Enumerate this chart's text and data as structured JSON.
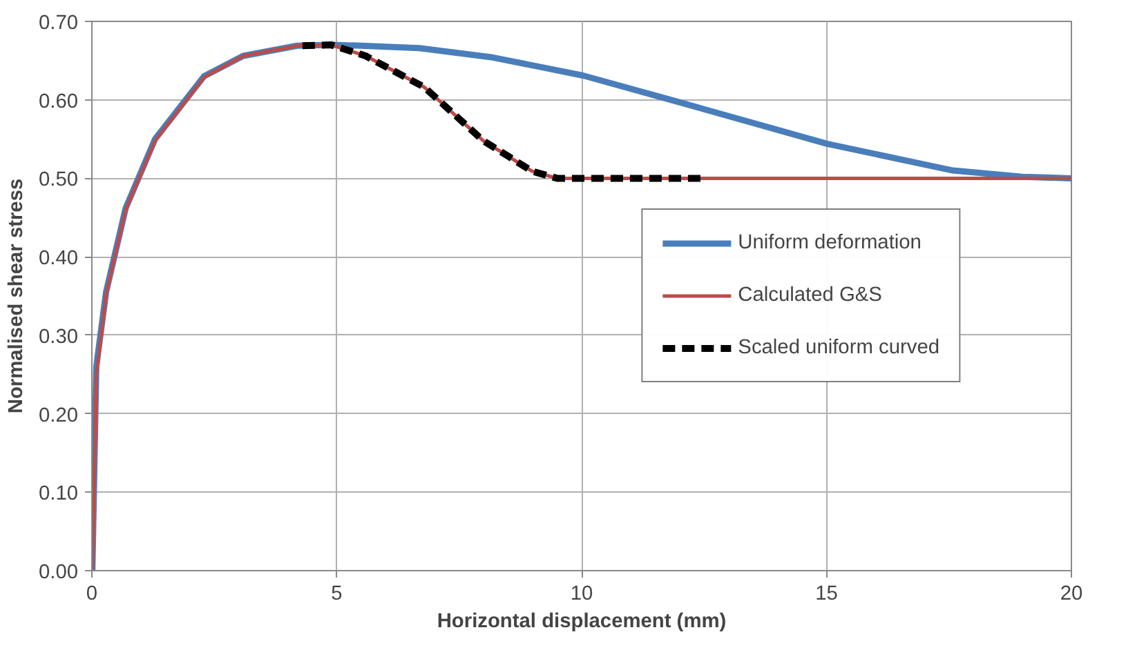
{
  "chart_data": {
    "type": "line",
    "xlabel": "Horizontal displacement (mm)",
    "ylabel": "Normalised shear stress",
    "xlim": [
      0,
      20
    ],
    "ylim": [
      0,
      0.7
    ],
    "xticks": [
      0,
      5,
      10,
      15,
      20
    ],
    "yticks": [
      {
        "value": 0,
        "label": "0.00"
      },
      {
        "value": 0.1,
        "label": "0.10"
      },
      {
        "value": 0.2,
        "label": "0.20"
      },
      {
        "value": 0.3,
        "label": "0.30"
      },
      {
        "value": 0.4,
        "label": "0.40"
      },
      {
        "value": 0.5,
        "label": "0.50"
      },
      {
        "value": 0.6,
        "label": "0.60"
      },
      {
        "value": 0.7,
        "label": "0.70"
      }
    ],
    "grid": true,
    "legend": "center right",
    "marker": "none",
    "series": [
      {
        "name": "Uniform deformation",
        "color": "#4a7ebb",
        "line_style": "solid",
        "x": [
          0.01,
          0.09,
          0.29,
          0.69,
          1.29,
          2.29,
          3.09,
          4.19,
          4.89,
          5.5,
          6.69,
          8.19,
          10.03,
          11.88,
          15.01,
          17.58,
          19.0,
          20.0
        ],
        "values": [
          0.0,
          0.26,
          0.355,
          0.462,
          0.55,
          0.63,
          0.656,
          0.669,
          0.67,
          0.669,
          0.666,
          0.654,
          0.631,
          0.599,
          0.544,
          0.51,
          0.502,
          0.5
        ]
      },
      {
        "name": "Calculated G&S",
        "color": "#be4b48",
        "line_style": "solid",
        "x": [
          0.01,
          0.09,
          0.29,
          0.69,
          1.29,
          2.29,
          3.09,
          4.19,
          4.89,
          5.59,
          6.79,
          7.99,
          8.99,
          9.5,
          20.0
        ],
        "values": [
          0.0,
          0.25,
          0.353,
          0.461,
          0.548,
          0.629,
          0.656,
          0.669,
          0.67,
          0.656,
          0.616,
          0.548,
          0.509,
          0.5,
          0.5
        ]
      },
      {
        "name": "Scaled uniform curved",
        "color": "#000000",
        "line_style": "dashed",
        "x": [
          4.3,
          4.89,
          5.59,
          6.79,
          7.99,
          8.99,
          9.5,
          12.5
        ],
        "values": [
          0.669,
          0.67,
          0.656,
          0.616,
          0.548,
          0.509,
          0.5,
          0.5
        ]
      }
    ]
  }
}
